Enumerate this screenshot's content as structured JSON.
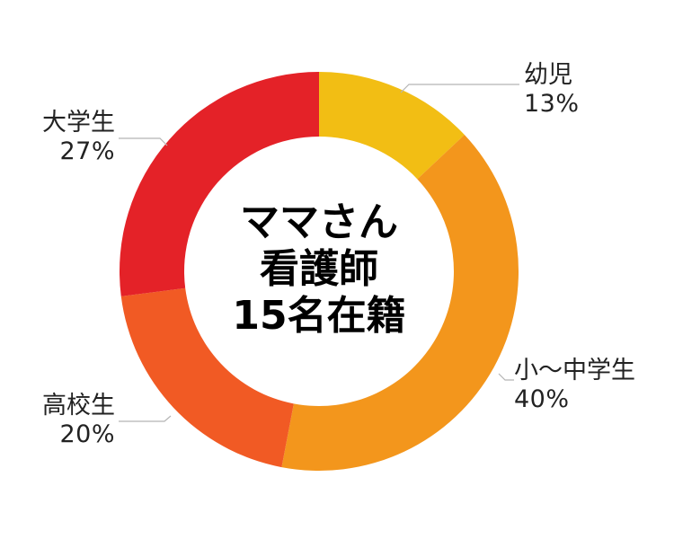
{
  "chart_data": {
    "type": "pie",
    "variant": "donut",
    "categories": [
      "幼児",
      "小〜中学生",
      "高校生",
      "大学生"
    ],
    "values": [
      13,
      40,
      20,
      27
    ],
    "value_labels": [
      "13%",
      "40%",
      "20%",
      "27%"
    ],
    "colors": [
      "#F2BE14",
      "#F3961C",
      "#F15A24",
      "#E42228"
    ],
    "center_text": [
      "ママさん",
      "看護師",
      "15名在籍"
    ],
    "start": "top",
    "direction": "clockwise"
  }
}
